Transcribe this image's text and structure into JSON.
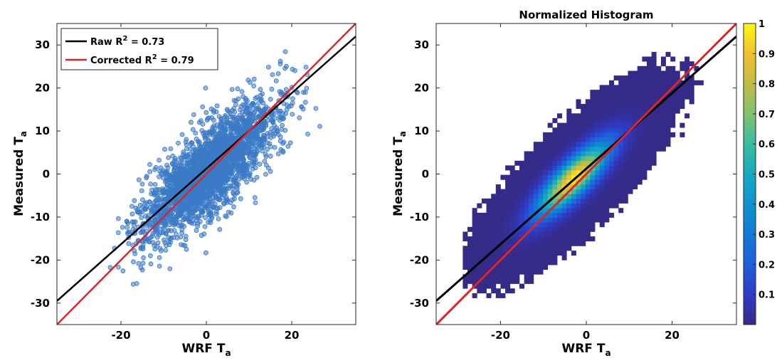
{
  "chart_data": [
    {
      "type": "scatter",
      "title": "",
      "xlabel": "WRF T",
      "xlabel_sub": "a",
      "ylabel": "Measured T",
      "ylabel_sub": "a",
      "xlim": [
        -35,
        35
      ],
      "ylim": [
        -35,
        35
      ],
      "xticks": [
        -20,
        0,
        20
      ],
      "yticks": [
        -30,
        -20,
        -10,
        0,
        10,
        20,
        30
      ],
      "grid": false,
      "legend_position": "top-left",
      "point_color": "#3b7ac6",
      "point_cloud": {
        "description_values": "WRF vs measured air temperature pairs",
        "x_range": [
          -29,
          29
        ],
        "y_range": [
          -29,
          29
        ]
      },
      "series": [
        {
          "name": "Raw",
          "legend_label": "Raw R",
          "legend_sup": "2",
          "legend_value": " = 0.73",
          "color": "#000000",
          "x": [
            -35,
            35
          ],
          "y": [
            -29.5,
            32
          ]
        },
        {
          "name": "Corrected",
          "legend_label": "Corrected R",
          "legend_sup": "2",
          "legend_value": " = 0.79",
          "color": "#d9262b",
          "x": [
            -35,
            35
          ],
          "y": [
            -35,
            35
          ]
        }
      ]
    },
    {
      "type": "heatmap",
      "title": "Normalized Histogram",
      "xlabel": "WRF T",
      "xlabel_sub": "a",
      "ylabel": "Measured T",
      "ylabel_sub": "a",
      "xlim": [
        -35,
        35
      ],
      "ylim": [
        -35,
        35
      ],
      "xticks": [
        -20,
        0,
        20
      ],
      "yticks": [
        -30,
        -20,
        -10,
        0,
        10,
        20,
        30
      ],
      "grid": false,
      "colormap": "parula",
      "colorbar": {
        "range": [
          0,
          1
        ],
        "ticks": [
          0.1,
          0.2,
          0.3,
          0.4,
          0.5,
          0.6,
          0.7,
          0.8,
          0.9,
          1
        ],
        "tick_labels": [
          "0.1",
          "0.2",
          "0.3",
          "0.4",
          "0.5",
          "0.6",
          "0.7",
          "0.8",
          "0.9",
          "1"
        ]
      },
      "peak": {
        "x": -3,
        "y": -1,
        "value": 1
      },
      "series": [
        {
          "name": "Raw",
          "color": "#000000",
          "x": [
            -35,
            35
          ],
          "y": [
            -29.5,
            32
          ]
        },
        {
          "name": "Corrected",
          "color": "#d9262b",
          "x": [
            -35,
            35
          ],
          "y": [
            -35,
            35
          ]
        }
      ]
    }
  ]
}
